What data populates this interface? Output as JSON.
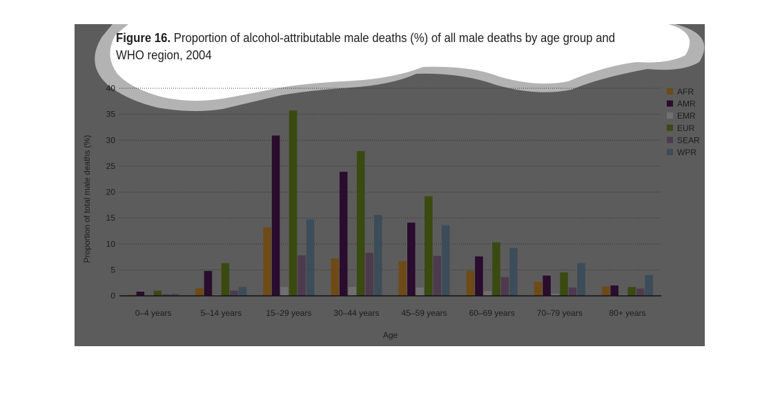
{
  "figure": {
    "number_label": "Figure 16.",
    "title_text": " Proportion of alcohol-attributable male deaths (%) of all male deaths by age group and WHO region, 2004"
  },
  "chart_data": {
    "type": "bar",
    "title": "Figure 16. Proportion of alcohol-attributable male deaths (%) of all male deaths by age group and WHO region, 2004",
    "xlabel": "Age",
    "ylabel": "Proportion of total male deaths (%)",
    "ylim": [
      0,
      40
    ],
    "yticks": [
      0,
      5,
      10,
      15,
      20,
      25,
      30,
      35,
      40
    ],
    "grid": true,
    "legend_position": "right",
    "categories": [
      "0–4 years",
      "5–14 years",
      "15–29 years",
      "30–44 years",
      "45–59 years",
      "60–69 years",
      "70–79 years",
      "80+ years"
    ],
    "series": [
      {
        "name": "AFR",
        "color": "#6e4a16",
        "values": [
          0.2,
          1.5,
          13.2,
          7.2,
          6.7,
          4.8,
          2.7,
          1.8
        ]
      },
      {
        "name": "AMR",
        "color": "#2a0c2e",
        "values": [
          0.8,
          4.8,
          30.9,
          23.9,
          14.1,
          7.6,
          3.9,
          2.0
        ]
      },
      {
        "name": "EMR",
        "color": "#707070",
        "values": [
          0.1,
          0.2,
          1.7,
          1.7,
          1.6,
          0.9,
          0.4,
          0.2
        ]
      },
      {
        "name": "EUR",
        "color": "#3a4a10",
        "values": [
          1.0,
          6.3,
          35.7,
          27.9,
          19.2,
          10.3,
          4.5,
          1.7
        ]
      },
      {
        "name": "SEAR",
        "color": "#4e3a4e",
        "values": [
          0.3,
          1.0,
          7.8,
          8.3,
          7.7,
          3.6,
          1.6,
          1.4
        ]
      },
      {
        "name": "WPR",
        "color": "#3c4c58",
        "values": [
          0.4,
          1.7,
          14.7,
          15.6,
          13.6,
          9.2,
          6.3,
          4.0
        ]
      }
    ]
  }
}
